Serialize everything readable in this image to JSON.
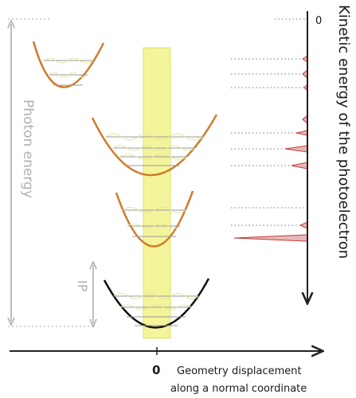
{
  "labels": {
    "photon_energy": "Photon energy",
    "ip": "IP",
    "origin_zero": "0",
    "x_axis_line1": "Geometry displacement",
    "x_axis_line2": "along a normal coordinate",
    "y_axis_title": "Kinetic energy of the photoelectron",
    "y_axis_zero": "0"
  },
  "colors": {
    "cation_curves": "#d07a2a",
    "neutral_curve": "#111111",
    "vib_levels": "#999999",
    "wavefunctions": "#dde8a0",
    "transition_band": "#f4f49a",
    "transition_band_edge": "#d8e070",
    "spectrum": "#c23b3b",
    "guides": "#aaaaaa",
    "axes": "#222222"
  }
}
